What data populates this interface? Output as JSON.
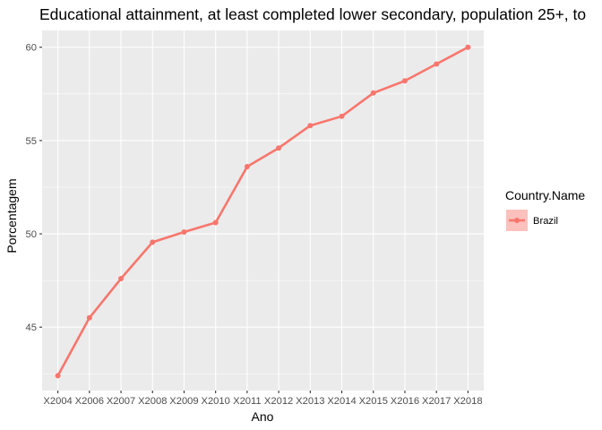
{
  "chart_data": {
    "type": "line",
    "title": "Educational attainment, at least completed lower secondary, population 25+, to",
    "xlabel": "Ano",
    "ylabel": "Porcentagem",
    "categories": [
      "X2004",
      "X2006",
      "X2007",
      "X2008",
      "X2009",
      "X2010",
      "X2011",
      "X2012",
      "X2013",
      "X2014",
      "X2015",
      "X2016",
      "X2017",
      "X2018"
    ],
    "series": [
      {
        "name": "Brazil",
        "values": [
          42.4,
          45.5,
          47.6,
          49.55,
          50.1,
          50.6,
          53.6,
          54.6,
          55.8,
          56.3,
          57.55,
          58.2,
          59.1,
          60.0
        ],
        "color": "#F8766D"
      }
    ],
    "ylim": [
      41.6,
      60.9
    ],
    "yticks": [
      45,
      50,
      55,
      60
    ],
    "grid": true,
    "panel_color": "#EBEBEB",
    "legend": {
      "title": "Country.Name",
      "placement": "right"
    }
  }
}
